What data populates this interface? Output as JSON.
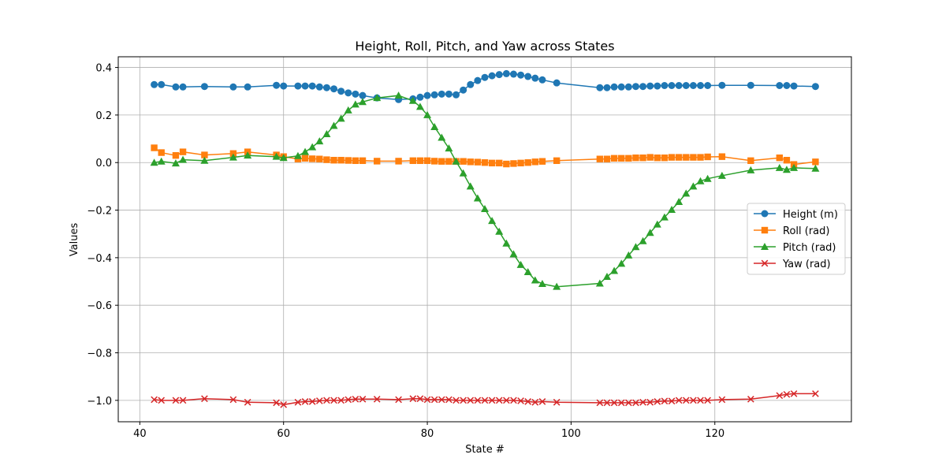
{
  "chart_data": {
    "type": "line",
    "title": "Height, Roll, Pitch, and Yaw across States",
    "xlabel": "State #",
    "ylabel": "Values",
    "xlim": [
      37,
      139
    ],
    "ylim": [
      -1.09,
      0.445
    ],
    "xticks": [
      40,
      60,
      80,
      100,
      120
    ],
    "yticks": [
      0.4,
      0.2,
      0.0,
      -0.2,
      -0.4,
      -0.6,
      -0.8,
      -1.0
    ],
    "ytick_labels": [
      "0.4",
      "0.2",
      "0.0",
      "−0.2",
      "−0.4",
      "−0.6",
      "−0.8",
      "−1.0"
    ],
    "grid": true,
    "legend_position": "center-right",
    "x": [
      42,
      43,
      45,
      46,
      49,
      53,
      55,
      59,
      60,
      62,
      63,
      64,
      65,
      66,
      67,
      68,
      69,
      70,
      71,
      73,
      76,
      78,
      79,
      80,
      81,
      82,
      83,
      84,
      85,
      86,
      87,
      88,
      89,
      90,
      91,
      92,
      93,
      94,
      95,
      96,
      98,
      104,
      105,
      106,
      107,
      108,
      109,
      110,
      111,
      112,
      113,
      114,
      115,
      116,
      117,
      118,
      119,
      121,
      125,
      129,
      130,
      131,
      134
    ],
    "series": [
      {
        "name": "Height (m)",
        "color": "#1f77b4",
        "marker": "circle",
        "values": [
          0.328,
          0.328,
          0.318,
          0.318,
          0.32,
          0.318,
          0.318,
          0.325,
          0.322,
          0.322,
          0.322,
          0.322,
          0.318,
          0.315,
          0.31,
          0.3,
          0.293,
          0.288,
          0.282,
          0.272,
          0.265,
          0.268,
          0.275,
          0.282,
          0.285,
          0.288,
          0.288,
          0.285,
          0.305,
          0.328,
          0.345,
          0.358,
          0.365,
          0.37,
          0.374,
          0.372,
          0.368,
          0.362,
          0.355,
          0.348,
          0.335,
          0.315,
          0.315,
          0.318,
          0.318,
          0.318,
          0.32,
          0.32,
          0.322,
          0.322,
          0.324,
          0.324,
          0.324,
          0.324,
          0.324,
          0.324,
          0.324,
          0.325,
          0.325,
          0.324,
          0.324,
          0.322,
          0.32
        ]
      },
      {
        "name": "Roll (rad)",
        "color": "#ff7f0e",
        "marker": "square",
        "values": [
          0.062,
          0.042,
          0.03,
          0.045,
          0.032,
          0.038,
          0.045,
          0.032,
          0.025,
          0.015,
          0.018,
          0.016,
          0.015,
          0.012,
          0.01,
          0.01,
          0.009,
          0.008,
          0.008,
          0.006,
          0.006,
          0.008,
          0.008,
          0.008,
          0.006,
          0.005,
          0.005,
          0.005,
          0.005,
          0.003,
          0.002,
          0.0,
          -0.002,
          -0.002,
          -0.006,
          -0.004,
          -0.002,
          0.0,
          0.003,
          0.005,
          0.008,
          0.015,
          0.015,
          0.018,
          0.018,
          0.018,
          0.02,
          0.02,
          0.022,
          0.02,
          0.02,
          0.022,
          0.022,
          0.022,
          0.022,
          0.022,
          0.024,
          0.025,
          0.008,
          0.02,
          0.01,
          -0.008,
          0.003
        ]
      },
      {
        "name": "Pitch (rad)",
        "color": "#2ca02c",
        "marker": "triangle",
        "values": [
          0.0,
          0.005,
          -0.003,
          0.012,
          0.008,
          0.022,
          0.03,
          0.025,
          0.02,
          0.028,
          0.045,
          0.065,
          0.09,
          0.12,
          0.155,
          0.185,
          0.22,
          0.245,
          0.255,
          0.272,
          0.282,
          0.26,
          0.235,
          0.2,
          0.15,
          0.105,
          0.06,
          0.005,
          -0.045,
          -0.1,
          -0.15,
          -0.195,
          -0.245,
          -0.29,
          -0.34,
          -0.385,
          -0.43,
          -0.46,
          -0.495,
          -0.51,
          -0.522,
          -0.508,
          -0.48,
          -0.455,
          -0.425,
          -0.39,
          -0.355,
          -0.33,
          -0.295,
          -0.26,
          -0.23,
          -0.198,
          -0.165,
          -0.13,
          -0.1,
          -0.078,
          -0.068,
          -0.055,
          -0.032,
          -0.022,
          -0.03,
          -0.022,
          -0.025
        ]
      },
      {
        "name": "Yaw (rad)",
        "color": "#d62728",
        "marker": "x",
        "values": [
          -0.997,
          -1.0,
          -1.0,
          -1.0,
          -0.993,
          -0.997,
          -1.008,
          -1.01,
          -1.018,
          -1.008,
          -1.005,
          -1.005,
          -1.002,
          -1.0,
          -1.0,
          -1.0,
          -0.997,
          -0.995,
          -0.995,
          -0.995,
          -0.997,
          -0.993,
          -0.993,
          -0.997,
          -0.997,
          -0.997,
          -0.997,
          -1.0,
          -1.0,
          -1.0,
          -1.0,
          -1.0,
          -1.0,
          -1.0,
          -1.0,
          -1.0,
          -1.002,
          -1.005,
          -1.008,
          -1.005,
          -1.008,
          -1.01,
          -1.01,
          -1.01,
          -1.01,
          -1.01,
          -1.01,
          -1.008,
          -1.008,
          -1.005,
          -1.003,
          -1.003,
          -1.0,
          -1.0,
          -1.0,
          -1.0,
          -1.0,
          -0.997,
          -0.995,
          -0.98,
          -0.975,
          -0.972,
          -0.972
        ]
      }
    ]
  }
}
